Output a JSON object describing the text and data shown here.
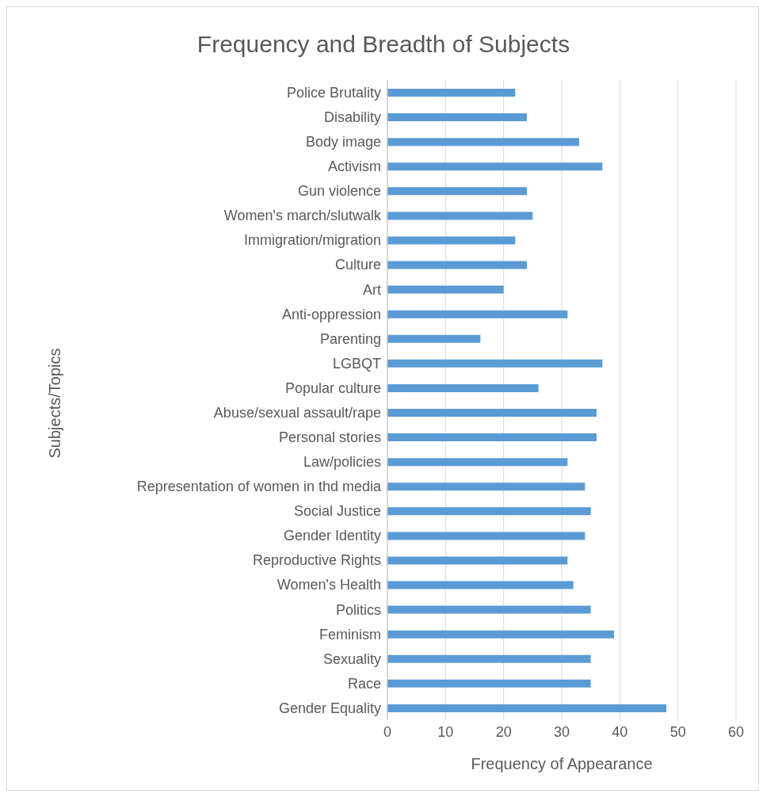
{
  "chart_data": {
    "type": "bar",
    "orientation": "horizontal",
    "title": "Frequency and Breadth of Subjects",
    "xlabel": "Frequency of Appearance",
    "ylabel": "Subjects/Topics",
    "categories": [
      "Police Brutality",
      "Disability",
      "Body image",
      "Activism",
      "Gun violence",
      "Women's march/slutwalk",
      "Immigration/migration",
      "Culture",
      "Art",
      "Anti-oppression",
      "Parenting",
      "LGBQT",
      "Popular culture",
      "Abuse/sexual assault/rape",
      "Personal stories",
      "Law/policies",
      "Representation of women in thd media",
      "Social Justice",
      "Gender Identity",
      "Reproductive Rights",
      "Women's Health",
      "Politics",
      "Feminism",
      "Sexuality",
      "Race",
      "Gender Equality"
    ],
    "values": [
      22,
      24,
      33,
      37,
      24,
      25,
      22,
      24,
      20,
      31,
      16,
      37,
      26,
      36,
      36,
      31,
      34,
      35,
      34,
      31,
      32,
      35,
      39,
      35,
      35,
      48
    ],
    "color": "#5b9bd5",
    "xlim": [
      0,
      60
    ],
    "xticks": [
      0,
      10,
      20,
      30,
      40,
      50,
      60
    ],
    "grid": "x",
    "legend": false
  }
}
